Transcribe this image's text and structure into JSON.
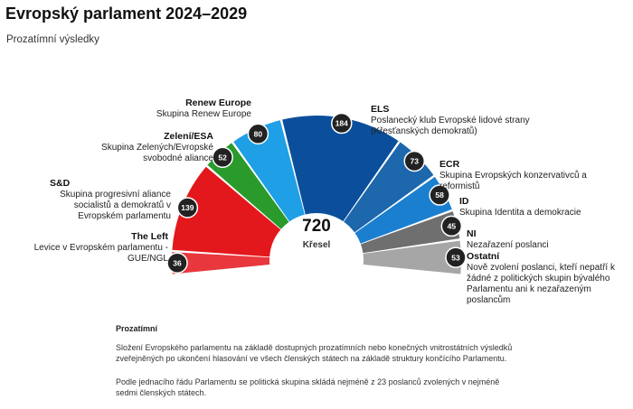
{
  "header": {
    "title": "Evropský parlament 2024–2029",
    "subtitle": "Prozatímní výsledky"
  },
  "center": {
    "total": "720",
    "label": "Křesel"
  },
  "chart_data": {
    "type": "pie",
    "title": "Evropský parlament 2024–2029",
    "subtitle": "Prozatímní výsledky",
    "total_seats": 720,
    "slices": [
      {
        "name": "The Left",
        "desc": "Levice v Evropském parlamentu - GUE/NGL",
        "value": 36,
        "color": "#e8373d"
      },
      {
        "name": "S&D",
        "desc": "Skupina progresivní aliance socialistů a demokratů v Evropském parlamentu",
        "value": 139,
        "color": "#e3181c"
      },
      {
        "name": "Zelení/ESA",
        "desc": "Skupina Zelených/Evropské svobodné aliance",
        "value": 52,
        "color": "#2a9a2c"
      },
      {
        "name": "Renew Europe",
        "desc": "Skupina Renew Europe",
        "value": 80,
        "color": "#1e9fe6"
      },
      {
        "name": "ELS",
        "desc": "Poslanecký klub Evropské lidové strany (Křesťanských demokratů)",
        "value": 184,
        "color": "#0b4f9c"
      },
      {
        "name": "ECR",
        "desc": "Skupina Evropských konzervativců a reformistů",
        "value": 73,
        "color": "#1d67ad"
      },
      {
        "name": "ID",
        "desc": "Skupina Identita a demokracie",
        "value": 58,
        "color": "#1b7fd0"
      },
      {
        "name": "NI",
        "desc": "Nezařazení poslanci",
        "value": 45,
        "color": "#6f6f6f"
      },
      {
        "name": "Ostatní",
        "desc": "Nově zvolení poslanci, kteří nepatří k žádné z politických skupin bývalého Parlamentu ani k nezařazeným poslancům",
        "value": 53,
        "color": "#a6a6a6"
      }
    ]
  },
  "notes": {
    "title": "Prozatímní",
    "p1": "Složení Evropského parlamentu na základě dostupných prozatímních nebo konečných vnitrostátních výsledků zveřejněných po ukončení hlasování ve všech členských státech na základě struktury končícího Parlamentu.",
    "p2": "Podle jednacího řádu Parlamentu se politická skupina skládá nejméně z 23 poslanců zvolených v nejméně sedmi členských státech."
  }
}
